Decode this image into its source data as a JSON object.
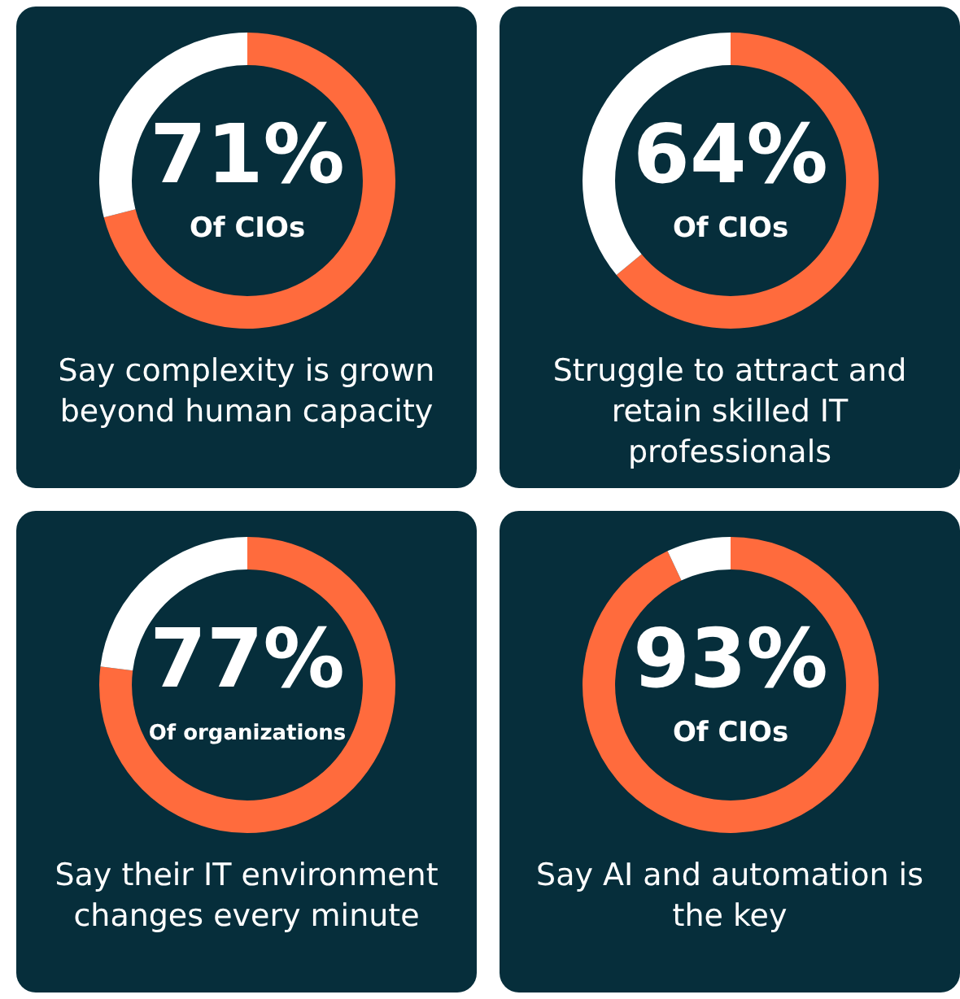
{
  "chart_data": [
    {
      "type": "donut",
      "categories": [
        null,
        null
      ],
      "values": [
        71,
        29
      ],
      "colors": [
        "#ff6b3d",
        "#ffffff"
      ],
      "value_labels": [
        "71%",
        null
      ],
      "annotations": [
        "Of CIOs",
        "Say complexity is grown beyond human capacity"
      ]
    },
    {
      "type": "donut",
      "categories": [
        null,
        null
      ],
      "values": [
        64,
        36
      ],
      "colors": [
        "#ff6b3d",
        "#ffffff"
      ],
      "value_labels": [
        "64%",
        null
      ],
      "annotations": [
        "Of CIOs",
        "Struggle to attract and retain skilled IT professionals"
      ]
    },
    {
      "type": "donut",
      "categories": [
        null,
        null
      ],
      "values": [
        77,
        23
      ],
      "colors": [
        "#ff6b3d",
        "#ffffff"
      ],
      "value_labels": [
        "77%",
        null
      ],
      "annotations": [
        "Of organizations",
        "Say their IT environment changes every minute"
      ]
    },
    {
      "type": "donut",
      "categories": [
        null,
        null
      ],
      "values": [
        93,
        7
      ],
      "colors": [
        "#ff6b3d",
        "#ffffff"
      ],
      "value_labels": [
        "93%",
        null
      ],
      "annotations": [
        "Of CIOs",
        "Say AI and automation is the key"
      ]
    }
  ]
}
